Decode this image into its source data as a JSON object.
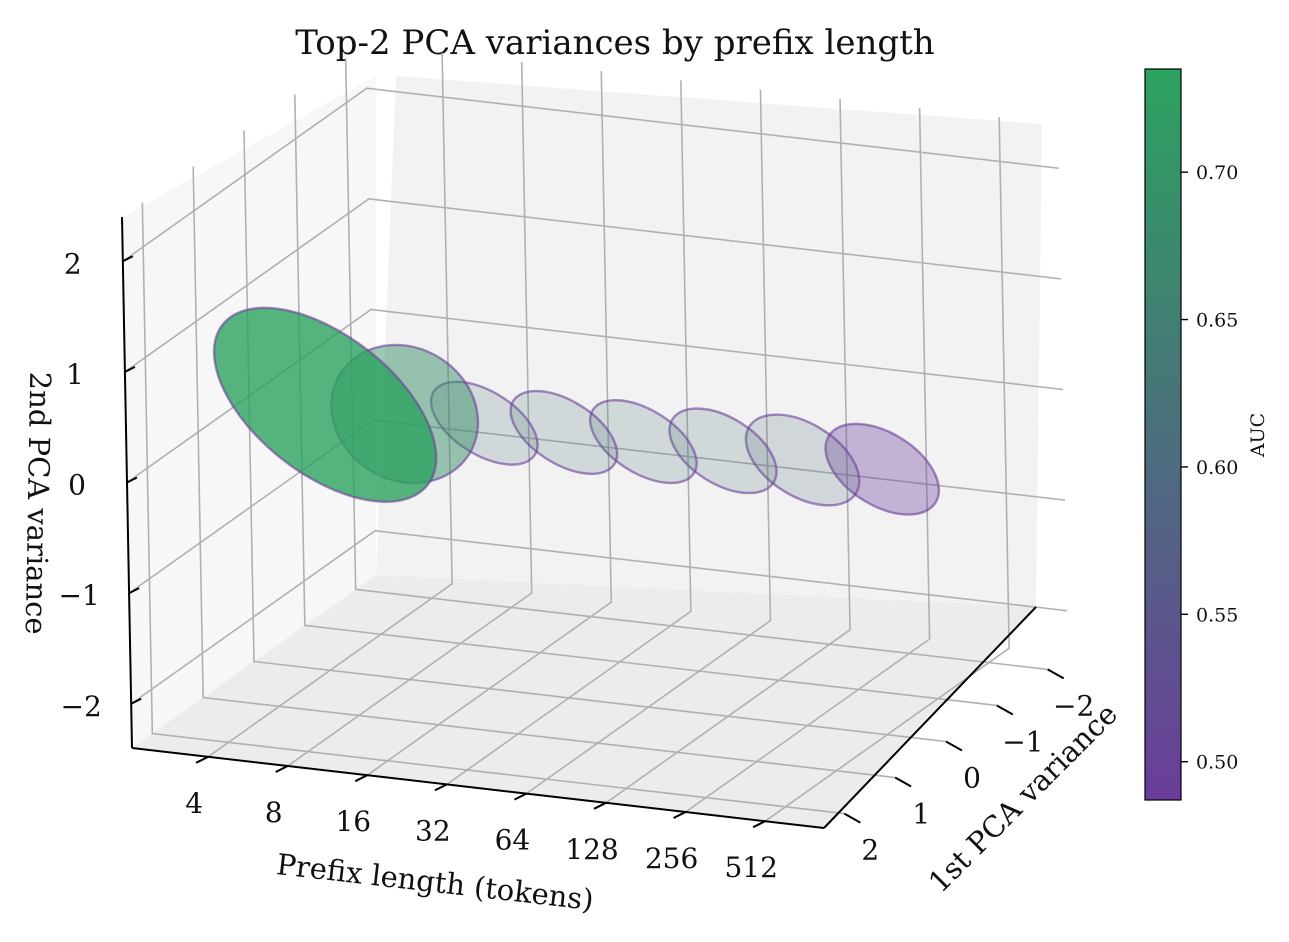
{
  "chart_data": {
    "type": "3d-ellipses",
    "title": "Top-2 PCA variances by prefix length",
    "xlabel": "Prefix length (tokens)",
    "ylabel": "1st PCA variance",
    "zlabel": "2nd PCA variance",
    "colorbar_label": "AUC",
    "categories": [
      "4",
      "8",
      "16",
      "32",
      "64",
      "128",
      "256",
      "512"
    ],
    "ylim": [
      -2.4,
      2.4
    ],
    "zlim": [
      -2.4,
      2.4
    ],
    "y_ticks": [
      {
        "label": "−2",
        "value": -2
      },
      {
        "label": "−1",
        "value": -1
      },
      {
        "label": "0",
        "value": 0
      },
      {
        "label": "1",
        "value": 1
      },
      {
        "label": "2",
        "value": 2
      }
    ],
    "z_ticks": [
      {
        "label": "2",
        "value": 2
      },
      {
        "label": "1",
        "value": 1
      },
      {
        "label": "0",
        "value": 0
      },
      {
        "label": "−1",
        "value": -1
      },
      {
        "label": "−2",
        "value": -2
      }
    ],
    "colorbar": {
      "range": [
        0.487,
        0.735
      ],
      "ticks": [
        {
          "label": "0.70",
          "value": 0.7
        },
        {
          "label": "0.65",
          "value": 0.65
        },
        {
          "label": "0.60",
          "value": 0.6
        },
        {
          "label": "0.55",
          "value": 0.55
        },
        {
          "label": "0.50",
          "value": 0.5
        }
      ],
      "low_color": "#6a3d9a",
      "high_color": "#2ca25f"
    },
    "series": [
      {
        "prefix": "4",
        "auc": 0.735,
        "var1": 2.2,
        "var2": 1.2,
        "tilt": 32
      },
      {
        "prefix": "8",
        "auc": 0.69,
        "var1": 2.1,
        "var2": 0.7,
        "tilt": 38
      },
      {
        "prefix": "16",
        "auc": 0.62,
        "var1": 1.0,
        "var2": 0.55,
        "tilt": 38
      },
      {
        "prefix": "32",
        "auc": 0.62,
        "var1": 1.0,
        "var2": 0.55,
        "tilt": 38
      },
      {
        "prefix": "64",
        "auc": 0.62,
        "var1": 1.0,
        "var2": 0.55,
        "tilt": 38
      },
      {
        "prefix": "128",
        "auc": 0.62,
        "var1": 1.05,
        "var2": 0.55,
        "tilt": 38
      },
      {
        "prefix": "256",
        "auc": 0.6,
        "var1": 1.15,
        "var2": 0.58,
        "tilt": 38
      },
      {
        "prefix": "512",
        "auc": 0.487,
        "var1": 1.15,
        "var2": 0.58,
        "tilt": 38
      }
    ]
  }
}
